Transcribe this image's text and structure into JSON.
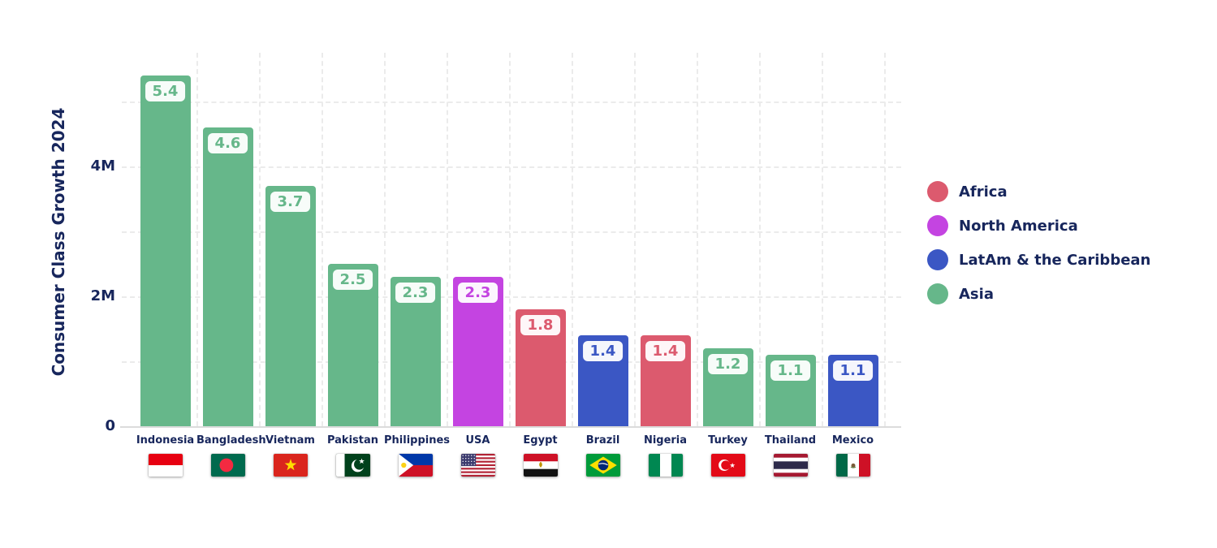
{
  "chart_data": {
    "type": "bar",
    "title": "",
    "ylabel": "Consumer Class Growth 2024",
    "xlabel": "",
    "ylim": [
      0,
      5.6
    ],
    "grid": true,
    "legend_position": "right",
    "yticks": [
      {
        "label": "0",
        "value": 0
      },
      {
        "label": "2M",
        "value": 2
      },
      {
        "label": "4M",
        "value": 4
      }
    ],
    "bars": [
      {
        "country": "Indonesia",
        "value": 5.4,
        "region": "Asia",
        "flag": "indonesia"
      },
      {
        "country": "Bangladesh",
        "value": 4.6,
        "region": "Asia",
        "flag": "bangladesh"
      },
      {
        "country": "Vietnam",
        "value": 3.7,
        "region": "Asia",
        "flag": "vietnam"
      },
      {
        "country": "Pakistan",
        "value": 2.5,
        "region": "Asia",
        "flag": "pakistan"
      },
      {
        "country": "Philippines",
        "value": 2.3,
        "region": "Asia",
        "flag": "philippines"
      },
      {
        "country": "USA",
        "value": 2.3,
        "region": "North America",
        "flag": "usa"
      },
      {
        "country": "Egypt",
        "value": 1.8,
        "region": "Africa",
        "flag": "egypt"
      },
      {
        "country": "Brazil",
        "value": 1.4,
        "region": "LatAm & the Caribbean",
        "flag": "brazil"
      },
      {
        "country": "Nigeria",
        "value": 1.4,
        "region": "Africa",
        "flag": "nigeria"
      },
      {
        "country": "Turkey",
        "value": 1.2,
        "region": "Asia",
        "flag": "turkey"
      },
      {
        "country": "Thailand",
        "value": 1.1,
        "region": "Asia",
        "flag": "thailand"
      },
      {
        "country": "Mexico",
        "value": 1.1,
        "region": "LatAm & the Caribbean",
        "flag": "mexico"
      }
    ],
    "legend": [
      {
        "label": "Africa"
      },
      {
        "label": "North America"
      },
      {
        "label": "LatAm & the Caribbean"
      },
      {
        "label": "Asia"
      }
    ],
    "region_colors": {
      "Africa": "#dc5a6e",
      "North America": "#c444e1",
      "LatAm & the Caribbean": "#3b57c4",
      "Asia": "#66b78a"
    },
    "axis_text_color": "#17265c"
  }
}
